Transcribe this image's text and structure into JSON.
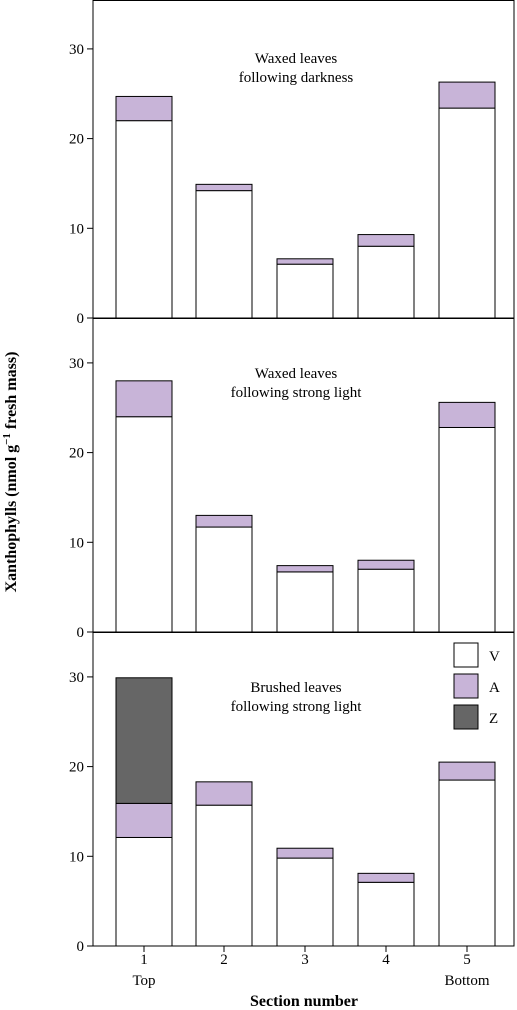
{
  "chart_data": {
    "type": "bar",
    "stacked": true,
    "ylabel_parts": [
      "Xanthophylls (nmol g",
      "−1",
      " fresh mass)"
    ],
    "xlabel": "Section number",
    "categories": [
      "1",
      "2",
      "3",
      "4",
      "5"
    ],
    "category_sublabels": [
      "Top",
      "",
      "",
      "",
      "Bottom"
    ],
    "ylim": [
      0,
      35
    ],
    "yticks": [
      0,
      10,
      20,
      30
    ],
    "colors": {
      "V": "#ffffff",
      "A": "#c8b4d8",
      "Z": "#666666"
    },
    "legend": {
      "placement": "top-right of bottom panel",
      "entries": [
        "V",
        "A",
        "Z"
      ]
    },
    "panels": [
      {
        "title": [
          "Waxed leaves",
          "following darkness"
        ],
        "series": [
          {
            "name": "V",
            "values": [
              22.0,
              14.2,
              6.0,
              8.0,
              23.4
            ]
          },
          {
            "name": "A",
            "values": [
              2.7,
              0.7,
              0.6,
              1.3,
              2.9
            ]
          },
          {
            "name": "Z",
            "values": [
              0,
              0,
              0,
              0,
              0
            ]
          }
        ]
      },
      {
        "title": [
          "Waxed leaves",
          "following strong light"
        ],
        "series": [
          {
            "name": "V",
            "values": [
              24.0,
              11.7,
              6.7,
              7.0,
              22.8
            ]
          },
          {
            "name": "A",
            "values": [
              4.0,
              1.3,
              0.7,
              1.0,
              2.8
            ]
          },
          {
            "name": "Z",
            "values": [
              0,
              0,
              0,
              0,
              0
            ]
          }
        ]
      },
      {
        "title": [
          "Brushed leaves",
          "following strong light"
        ],
        "series": [
          {
            "name": "V",
            "values": [
              12.1,
              15.7,
              9.8,
              7.1,
              18.5
            ]
          },
          {
            "name": "A",
            "values": [
              3.8,
              2.6,
              1.1,
              1.0,
              2.0
            ]
          },
          {
            "name": "Z",
            "values": [
              14.0,
              0,
              0,
              0,
              0
            ]
          }
        ]
      }
    ]
  }
}
